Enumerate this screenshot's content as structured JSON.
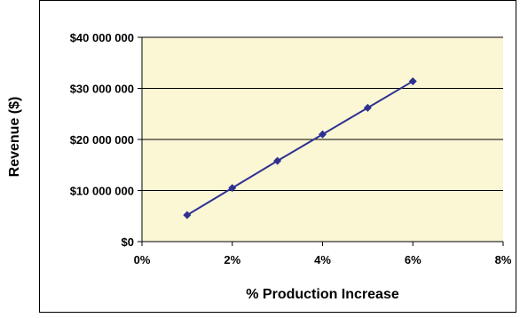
{
  "chart_data": {
    "type": "line",
    "title": "",
    "xlabel": "% Production Increase",
    "ylabel": "Revenue ($)",
    "x": [
      0.01,
      0.02,
      0.03,
      0.04,
      0.05,
      0.06
    ],
    "series": [
      {
        "values": [
          5200000,
          10500000,
          15800000,
          21000000,
          26200000,
          31400000
        ],
        "color": "#2e3192",
        "marker": "diamond"
      }
    ],
    "xlim": [
      0,
      0.08
    ],
    "ylim": [
      0,
      40000000
    ],
    "x_ticks": [
      {
        "value": 0.0,
        "label": "0%"
      },
      {
        "value": 0.02,
        "label": "2%"
      },
      {
        "value": 0.04,
        "label": "4%"
      },
      {
        "value": 0.06,
        "label": "6%"
      },
      {
        "value": 0.08,
        "label": "8%"
      }
    ],
    "y_ticks": [
      {
        "value": 0,
        "label": "$0"
      },
      {
        "value": 10000000,
        "label": "$10 000 000"
      },
      {
        "value": 20000000,
        "label": "$20 000 000"
      },
      {
        "value": 30000000,
        "label": "$30 000 000"
      },
      {
        "value": 40000000,
        "label": "$40 000 000"
      }
    ],
    "grid": "horizontal",
    "legend": "none",
    "plot_background": "#fbf7d5",
    "gridline_color": "#000000"
  }
}
